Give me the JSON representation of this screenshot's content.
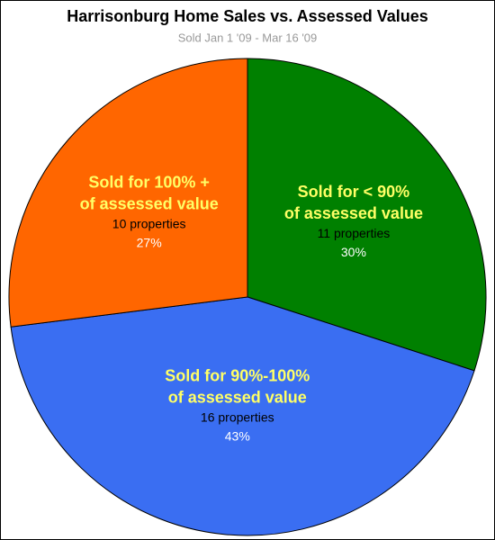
{
  "chart_data": {
    "type": "pie",
    "title": "Harrisonburg Home Sales vs. Assessed Values",
    "subtitle": "Sold Jan 1 '09 - Mar 16 '09",
    "categories": [
      [
        "Sold for < 90%",
        "of assessed value"
      ],
      [
        "Sold for 90%-100%",
        "of assessed value"
      ],
      [
        "Sold for 100% +",
        "of assessed value"
      ]
    ],
    "values": [
      30,
      43,
      27
    ],
    "value_labels": [
      "30%",
      "43%",
      "27%"
    ],
    "counts": [
      11,
      16,
      10
    ],
    "count_labels": [
      "11 properties",
      "16 properties",
      "10 properties"
    ],
    "colors": [
      "#008000",
      "#3a6ef2",
      "#ff6600"
    ]
  }
}
